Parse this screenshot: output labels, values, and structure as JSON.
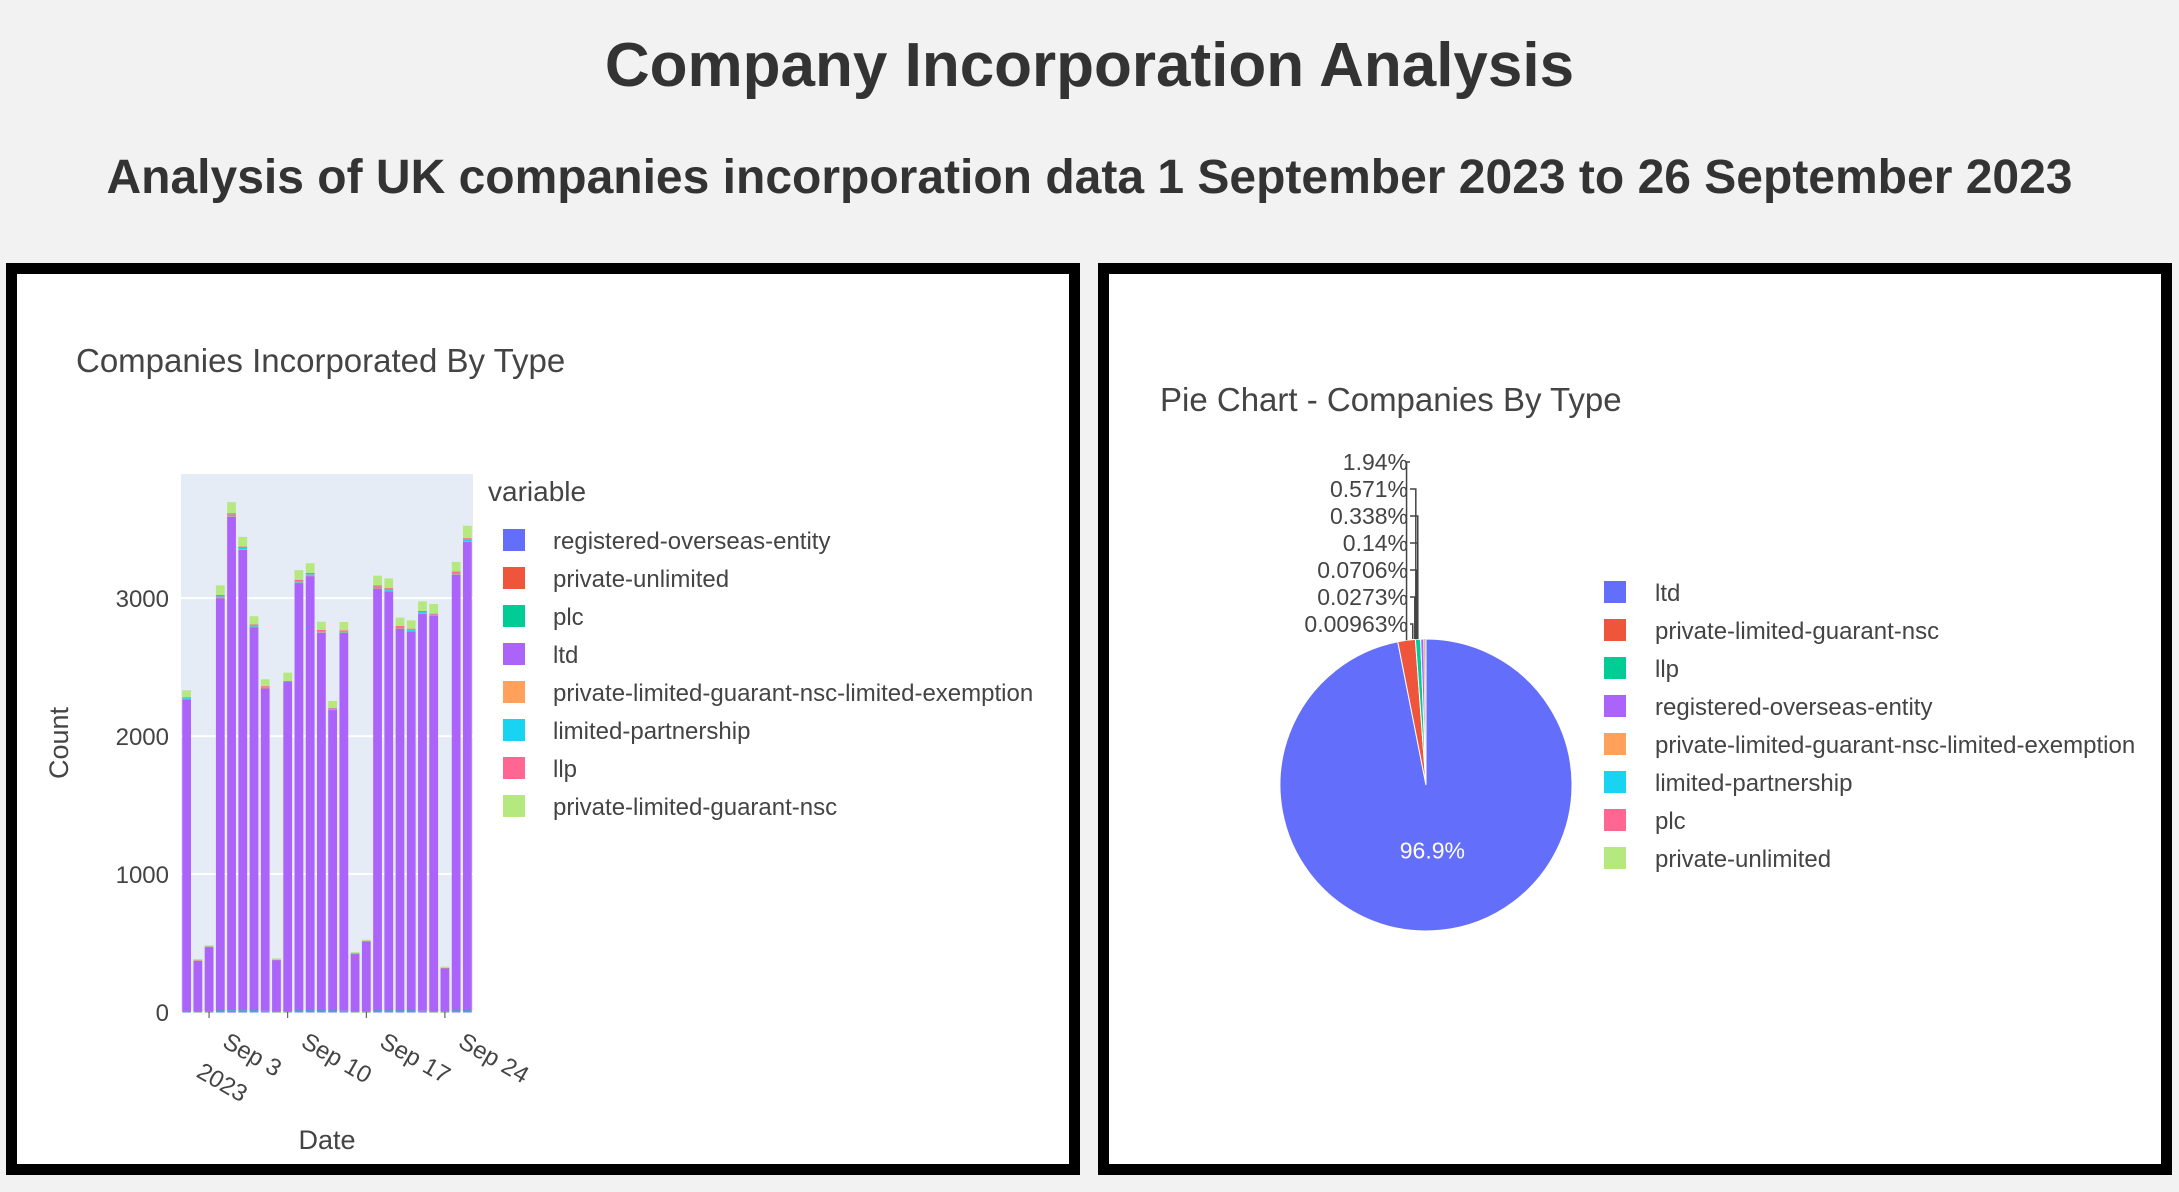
{
  "header": {
    "title": "Company Incorporation Analysis",
    "subtitle": "Analysis of UK companies incorporation data 1 September 2023 to 26 September 2023"
  },
  "chart_data": [
    {
      "type": "bar",
      "stacked": true,
      "title": "Companies Incorporated By Type",
      "xlabel": "Date",
      "ylabel": "Count",
      "ylim": [
        0,
        3900
      ],
      "yticks": [
        0,
        1000,
        2000,
        3000
      ],
      "ytick_labels": [
        "0",
        "1000",
        "2000",
        "3000"
      ],
      "xticks": [
        "2023-09-03",
        "2023-09-10",
        "2023-09-17",
        "2023-09-24"
      ],
      "xtick_labels": [
        [
          "Sep 3",
          "2023"
        ],
        [
          "Sep 10"
        ],
        [
          "Sep 17"
        ],
        [
          "Sep 24"
        ]
      ],
      "grid": true,
      "legend_title": "variable",
      "legend_position": "right",
      "categories": [
        "2023-09-01",
        "2023-09-02",
        "2023-09-03",
        "2023-09-04",
        "2023-09-05",
        "2023-09-06",
        "2023-09-07",
        "2023-09-08",
        "2023-09-09",
        "2023-09-10",
        "2023-09-11",
        "2023-09-12",
        "2023-09-13",
        "2023-09-14",
        "2023-09-15",
        "2023-09-16",
        "2023-09-17",
        "2023-09-18",
        "2023-09-19",
        "2023-09-20",
        "2023-09-21",
        "2023-09-22",
        "2023-09-23",
        "2023-09-24",
        "2023-09-25",
        "2023-09-26"
      ],
      "series": [
        {
          "name": "registered-overseas-entity",
          "color": "#636efa",
          "values": [
            1,
            0,
            0,
            1,
            1,
            1,
            1,
            1,
            0,
            0,
            1,
            1,
            1,
            1,
            1,
            0,
            0,
            1,
            1,
            1,
            1,
            1,
            0,
            0,
            1,
            1
          ]
        },
        {
          "name": "private-unlimited",
          "color": "#ef553b",
          "values": [
            4,
            1,
            1,
            6,
            7,
            7,
            6,
            5,
            1,
            1,
            6,
            6,
            6,
            6,
            5,
            1,
            1,
            6,
            6,
            6,
            6,
            5,
            1,
            1,
            6,
            6
          ]
        },
        {
          "name": "plc",
          "color": "#00cc96",
          "values": [
            3,
            1,
            1,
            4,
            4,
            4,
            4,
            3,
            1,
            1,
            4,
            4,
            4,
            4,
            3,
            1,
            1,
            4,
            4,
            4,
            4,
            3,
            1,
            1,
            4,
            4
          ]
        },
        {
          "name": "ltd",
          "color": "#ab63fa",
          "values": [
            2260,
            370,
            470,
            2990,
            3580,
            3340,
            2780,
            2340,
            375,
            2390,
            3100,
            3150,
            2740,
            2180,
            2740,
            420,
            510,
            3060,
            3040,
            2770,
            2750,
            2880,
            2870,
            315,
            3160,
            3400
          ]
        },
        {
          "name": "private-limited-guarant-nsc-limited-exemption",
          "color": "#ffa15a",
          "values": [
            2,
            0,
            0,
            2,
            2,
            2,
            2,
            1,
            0,
            0,
            2,
            2,
            2,
            2,
            2,
            0,
            0,
            2,
            2,
            2,
            2,
            2,
            0,
            0,
            2,
            2
          ]
        },
        {
          "name": "limited-partnership",
          "color": "#19d3f3",
          "values": [
            6,
            1,
            1,
            10,
            11,
            10,
            8,
            6,
            1,
            4,
            10,
            10,
            8,
            6,
            8,
            1,
            1,
            10,
            10,
            8,
            8,
            8,
            8,
            1,
            10,
            11
          ]
        },
        {
          "name": "llp",
          "color": "#ff6692",
          "values": [
            6,
            1,
            1,
            10,
            11,
            10,
            8,
            6,
            1,
            4,
            10,
            10,
            8,
            6,
            8,
            1,
            1,
            10,
            10,
            8,
            8,
            8,
            8,
            1,
            10,
            11
          ]
        },
        {
          "name": "private-limited-guarant-nsc",
          "color": "#b6e880",
          "values": [
            50,
            10,
            10,
            70,
            80,
            70,
            60,
            50,
            10,
            60,
            70,
            70,
            60,
            50,
            60,
            10,
            10,
            70,
            70,
            60,
            60,
            70,
            70,
            10,
            70,
            90
          ]
        }
      ]
    },
    {
      "type": "pie",
      "title": "Pie Chart - Companies By Type",
      "legend_position": "right",
      "labels": [
        "ltd",
        "private-limited-guarant-nsc",
        "llp",
        "registered-overseas-entity",
        "private-limited-guarant-nsc-limited-exemption",
        "limited-partnership",
        "plc",
        "private-unlimited"
      ],
      "colors": [
        "#636efa",
        "#ef553b",
        "#00cc96",
        "#ab63fa",
        "#ffa15a",
        "#19d3f3",
        "#ff6692",
        "#b6e880"
      ],
      "values": [
        96.9,
        1.94,
        0.571,
        0.338,
        0.14,
        0.0706,
        0.0273,
        0.00963
      ],
      "value_labels": [
        "96.9%",
        "1.94%",
        "0.571%",
        "0.338%",
        "0.14%",
        "0.0706%",
        "0.0273%",
        "0.00963%"
      ]
    }
  ]
}
